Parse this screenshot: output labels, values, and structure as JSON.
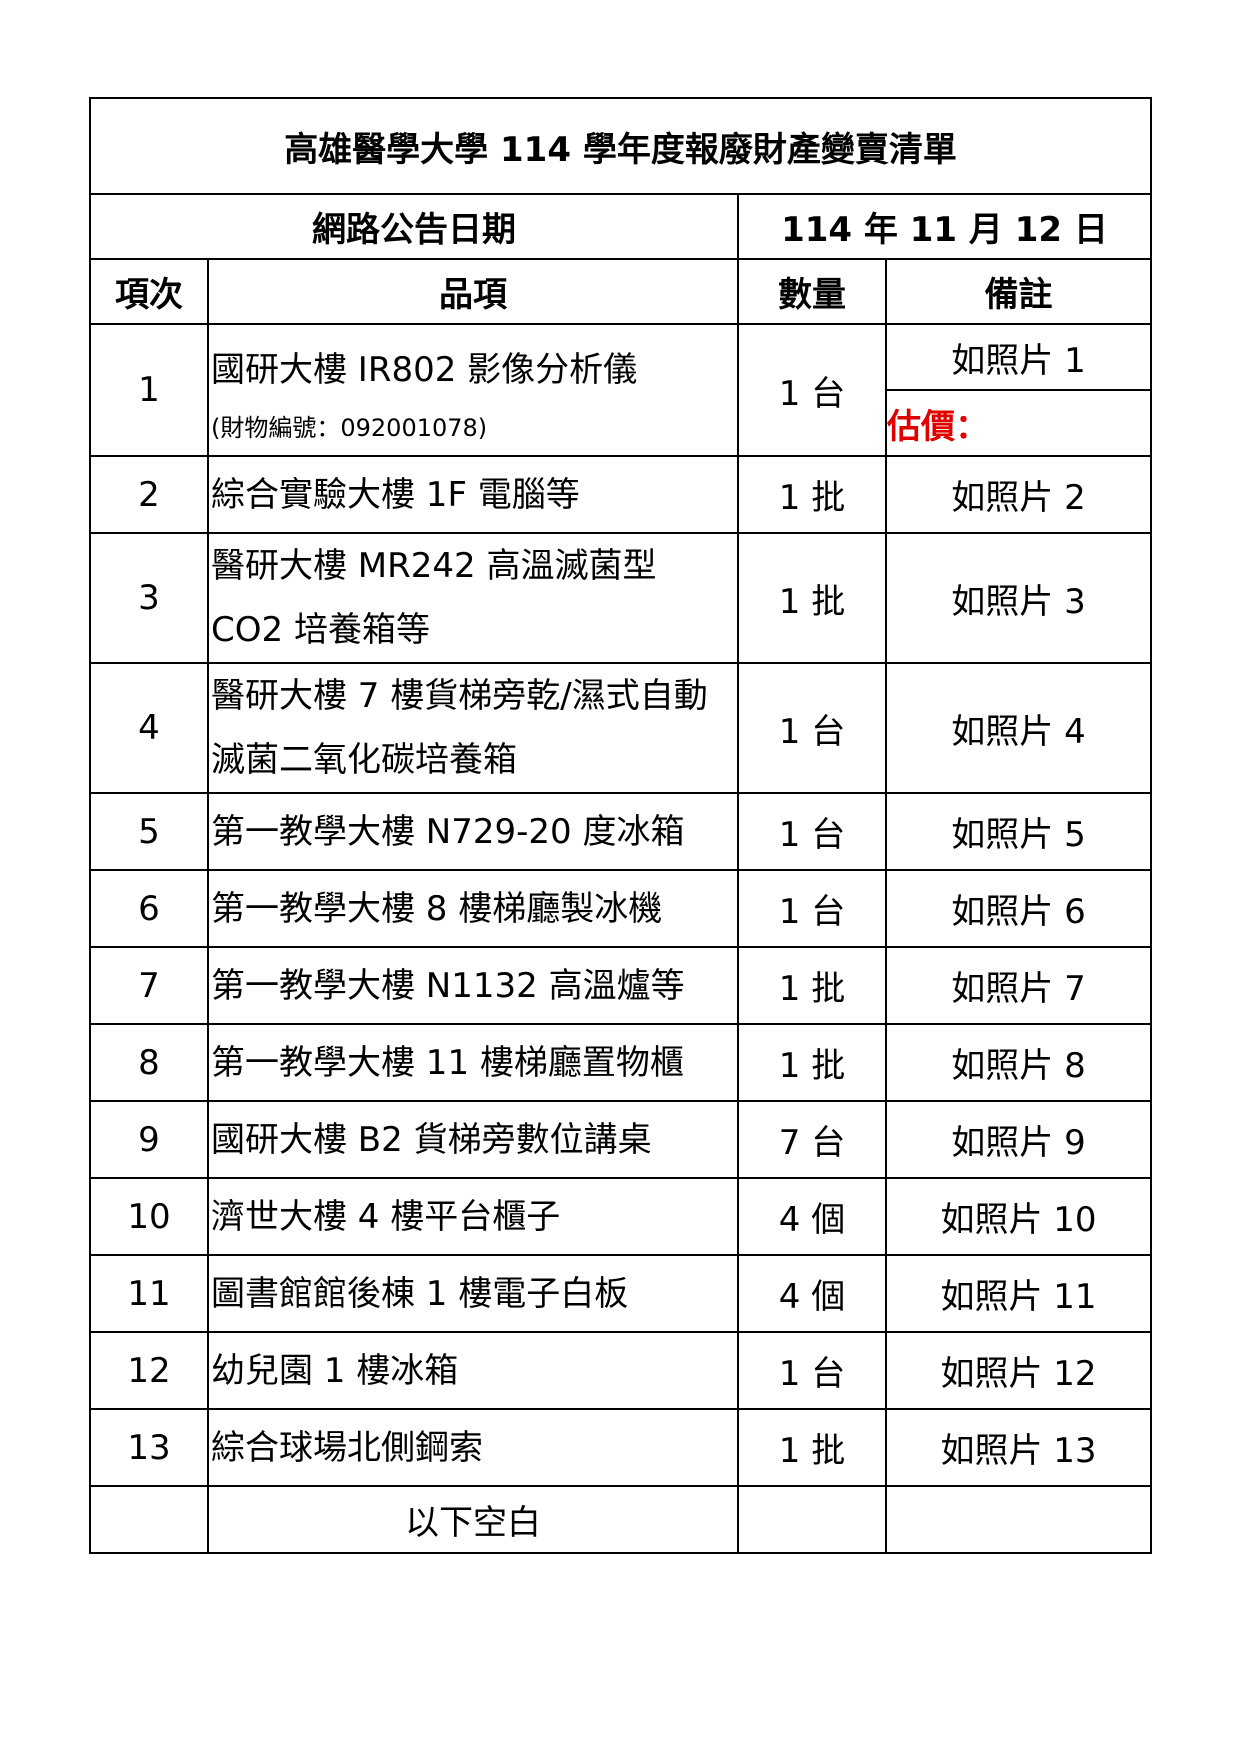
{
  "title": "高雄醫學大學 114 學年度報廢財產變賣清單",
  "announce": {
    "label": "網路公告日期",
    "date": "114 年 11 月 12 日"
  },
  "headers": {
    "no": "項次",
    "item": "品項",
    "qty": "數量",
    "note": "備註"
  },
  "row1": {
    "no": "1",
    "item": "國研大樓 IR802 影像分析儀",
    "asset": "(財物編號：092001078)",
    "qty": "1 台",
    "note": "如照片 1",
    "estimate": "估價：",
    "estimate_color": "#e00000"
  },
  "rows": [
    {
      "no": "2",
      "item": "綜合實驗大樓 1F 電腦等",
      "qty": "1 批",
      "note": "如照片 2"
    },
    {
      "no": "3",
      "item": "醫研大樓 MR242 高溫滅菌型 CO2 培養箱等",
      "qty": "1 批",
      "note": "如照片 3"
    },
    {
      "no": "4",
      "item": "醫研大樓 7 樓貨梯旁乾/濕式自動滅菌二氧化碳培養箱",
      "qty": "1 台",
      "note": "如照片 4"
    },
    {
      "no": "5",
      "item": "第一教學大樓 N729-20 度冰箱",
      "qty": "1 台",
      "note": "如照片 5"
    },
    {
      "no": "6",
      "item": "第一教學大樓 8 樓梯廳製冰機",
      "qty": "1 台",
      "note": "如照片 6"
    },
    {
      "no": "7",
      "item": "第一教學大樓 N1132 高溫爐等",
      "qty": "1 批",
      "note": "如照片 7"
    },
    {
      "no": "8",
      "item": "第一教學大樓 11 樓梯廳置物櫃",
      "qty": "1 批",
      "note": "如照片 8"
    },
    {
      "no": "9",
      "item": "國研大樓 B2 貨梯旁數位講桌",
      "qty": "7 台",
      "note": "如照片 9"
    },
    {
      "no": "10",
      "item": "濟世大樓 4 樓平台櫃子",
      "qty": "4 個",
      "note": "如照片 10"
    },
    {
      "no": "11",
      "item": "圖書館館後棟 1 樓電子白板",
      "qty": "4 個",
      "note": "如照片 11"
    },
    {
      "no": "12",
      "item": "幼兒園 1 樓冰箱",
      "qty": "1 台",
      "note": "如照片 12"
    },
    {
      "no": "13",
      "item": "綜合球場北側鋼索",
      "qty": "1 批",
      "note": "如照片 13"
    }
  ],
  "end": "以下空白"
}
